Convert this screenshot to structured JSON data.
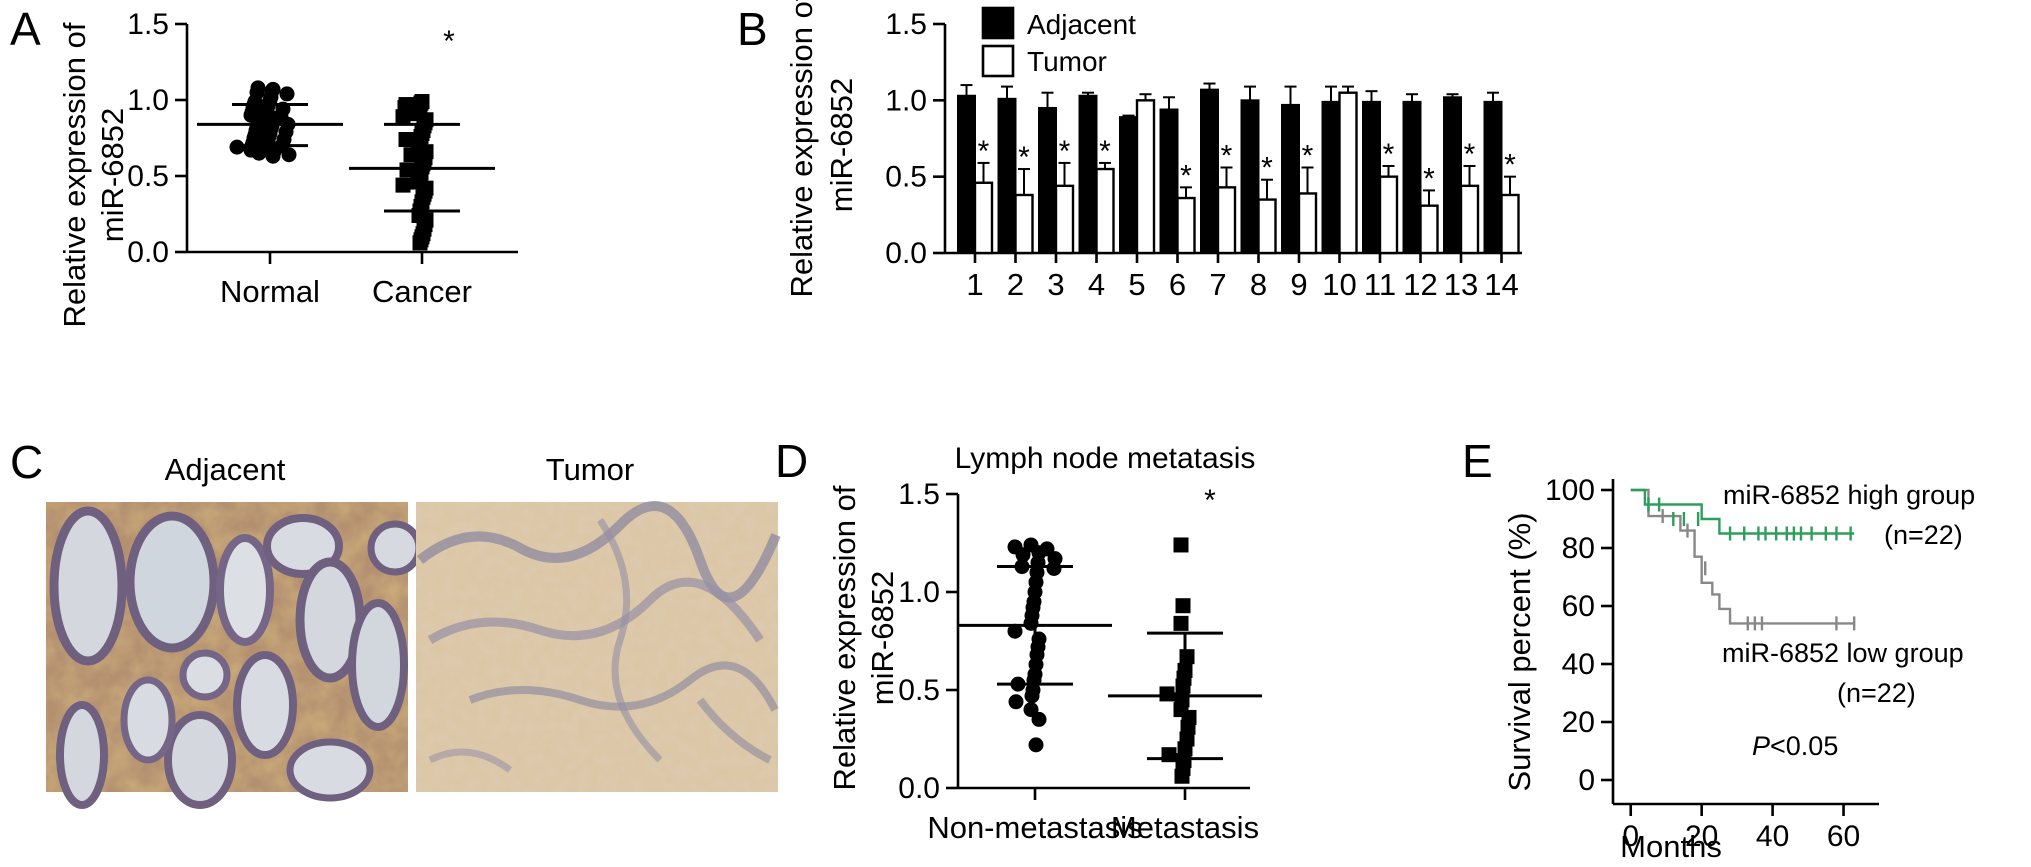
{
  "panels": {
    "A": "A",
    "B": "B",
    "C": "C",
    "D": "D",
    "E": "E"
  },
  "colors": {
    "high_group": "#2e9e5b",
    "low_group": "#888888",
    "adjacent_bar": "#000000",
    "tumor_bar": "#ffffff"
  },
  "micrographs": {
    "left_label": "Adjacent",
    "right_label": "Tumor"
  },
  "chart_data": [
    {
      "id": "A",
      "type": "scatter",
      "ylabel_line1": "Relative expression of",
      "ylabel_line2": "miR-6852",
      "ylim": [
        0,
        1.5
      ],
      "yticks": [
        "0.0",
        "0.5",
        "1.0",
        "1.5"
      ],
      "categories": [
        "Normal",
        "Cancer"
      ],
      "significance": "*",
      "groups": [
        {
          "name": "Normal",
          "marker": "circle",
          "mean": 0.84,
          "sd_low": 0.7,
          "sd_high": 0.97,
          "values": [
            1.07,
            1.06,
            1.08,
            1.05,
            1.04,
            1.02,
            1.0,
            0.99,
            0.98,
            0.97,
            0.96,
            0.95,
            0.94,
            0.93,
            0.92,
            0.91,
            0.9,
            0.89,
            0.88,
            0.87,
            0.86,
            0.85,
            0.84,
            0.83,
            0.82,
            0.81,
            0.8,
            0.79,
            0.78,
            0.77,
            0.76,
            0.75,
            0.74,
            0.73,
            0.72,
            0.71,
            0.7,
            0.7,
            0.69,
            0.68,
            0.67,
            0.66,
            0.65,
            0.64,
            0.63
          ]
        },
        {
          "name": "Cancer",
          "marker": "square",
          "mean": 0.55,
          "sd_low": 0.27,
          "sd_high": 0.84,
          "values": [
            0.99,
            0.98,
            0.97,
            0.96,
            0.95,
            0.93,
            0.91,
            0.89,
            0.87,
            0.85,
            0.83,
            0.8,
            0.78,
            0.76,
            0.74,
            0.72,
            0.7,
            0.68,
            0.66,
            0.64,
            0.62,
            0.6,
            0.58,
            0.56,
            0.54,
            0.52,
            0.5,
            0.48,
            0.46,
            0.44,
            0.42,
            0.4,
            0.38,
            0.36,
            0.33,
            0.3,
            0.27,
            0.24,
            0.21,
            0.18,
            0.15,
            0.12,
            0.1,
            0.08,
            0.06
          ]
        }
      ]
    },
    {
      "id": "B",
      "type": "bar",
      "ylabel_line1": "Relative expression of",
      "ylabel_line2": "miR-6852",
      "ylim": [
        0,
        1.5
      ],
      "yticks": [
        "0.0",
        "0.5",
        "1.0",
        "1.5"
      ],
      "categories": [
        "1",
        "2",
        "3",
        "4",
        "5",
        "6",
        "7",
        "8",
        "9",
        "10",
        "11",
        "12",
        "13",
        "14"
      ],
      "significance": "*",
      "significant": [
        true,
        true,
        true,
        true,
        false,
        true,
        true,
        true,
        true,
        false,
        true,
        true,
        true,
        true
      ],
      "series": [
        {
          "name": "Adjacent",
          "values": [
            1.03,
            1.01,
            0.95,
            1.03,
            0.89,
            0.94,
            1.07,
            1.0,
            0.97,
            0.99,
            0.99,
            0.99,
            1.02,
            0.99
          ],
          "errors": [
            0.07,
            0.08,
            0.1,
            0.02,
            0.01,
            0.08,
            0.04,
            0.09,
            0.12,
            0.1,
            0.07,
            0.05,
            0.02,
            0.06
          ]
        },
        {
          "name": "Tumor",
          "values": [
            0.46,
            0.38,
            0.44,
            0.55,
            1.0,
            0.36,
            0.43,
            0.35,
            0.39,
            1.05,
            0.5,
            0.31,
            0.44,
            0.38
          ],
          "errors": [
            0.13,
            0.17,
            0.15,
            0.04,
            0.04,
            0.07,
            0.13,
            0.13,
            0.17,
            0.04,
            0.07,
            0.1,
            0.13,
            0.12
          ]
        }
      ]
    },
    {
      "id": "D",
      "type": "scatter",
      "title": "Lymph node metatasis",
      "ylabel_line1": "Relative expression of",
      "ylabel_line2": "miR-6852",
      "ylim": [
        0,
        1.5
      ],
      "yticks": [
        "0.0",
        "0.5",
        "1.0",
        "1.5"
      ],
      "categories": [
        "Non-metastasis",
        "Metastasis"
      ],
      "significance": "*",
      "groups": [
        {
          "name": "Non-metastasis",
          "marker": "circle",
          "mean": 0.83,
          "sd_low": 0.53,
          "sd_high": 1.13,
          "values": [
            1.24,
            1.23,
            1.22,
            1.2,
            1.19,
            1.17,
            1.15,
            1.13,
            1.12,
            1.1,
            1.05,
            1.0,
            0.95,
            0.92,
            0.88,
            0.84,
            0.8,
            0.76,
            0.72,
            0.68,
            0.63,
            0.58,
            0.55,
            0.53,
            0.5,
            0.47,
            0.44,
            0.4,
            0.35,
            0.22
          ]
        },
        {
          "name": "Metastasis",
          "marker": "square",
          "mean": 0.47,
          "sd_low": 0.15,
          "sd_high": 0.79,
          "values": [
            1.24,
            0.93,
            0.84,
            0.67,
            0.6,
            0.56,
            0.52,
            0.48,
            0.45,
            0.4,
            0.36,
            0.31,
            0.25,
            0.2,
            0.17,
            0.14,
            0.1,
            0.06
          ]
        }
      ]
    },
    {
      "id": "E",
      "type": "line",
      "xlabel": "Months",
      "ylabel": "Survival percent (%)",
      "xlim": [
        -5,
        70
      ],
      "ylim": [
        0,
        100
      ],
      "xticks": [
        "0",
        "20",
        "40",
        "60"
      ],
      "yticks": [
        "0",
        "20",
        "40",
        "60",
        "80",
        "100"
      ],
      "p_italic": "P",
      "p_rest": "<0.05",
      "series": [
        {
          "name": "miR-6852 high group",
          "n_label": "(n=22)",
          "color": "#2e9e5b",
          "steps": [
            [
              0,
              100
            ],
            [
              4,
              100
            ],
            [
              4,
              95
            ],
            [
              20,
              95
            ],
            [
              20,
              90
            ],
            [
              25,
              90
            ],
            [
              25,
              85
            ],
            [
              63,
              85
            ]
          ],
          "censored": [
            [
              5,
              95
            ],
            [
              8,
              95
            ],
            [
              12,
              90
            ],
            [
              15,
              90
            ],
            [
              19,
              90
            ],
            [
              28,
              85
            ],
            [
              32,
              85
            ],
            [
              36,
              85
            ],
            [
              38,
              85
            ],
            [
              41,
              85
            ],
            [
              44,
              85
            ],
            [
              46,
              85
            ],
            [
              48,
              85
            ],
            [
              51,
              85
            ],
            [
              55,
              85
            ],
            [
              58,
              85
            ],
            [
              62,
              85
            ]
          ]
        },
        {
          "name": "miR-6852 low group",
          "n_label": "(n=22)",
          "color": "#888888",
          "steps": [
            [
              0,
              100
            ],
            [
              5,
              100
            ],
            [
              5,
              91
            ],
            [
              14,
              91
            ],
            [
              14,
              86
            ],
            [
              18,
              86
            ],
            [
              18,
              77
            ],
            [
              20,
              77
            ],
            [
              20,
              68
            ],
            [
              23,
              68
            ],
            [
              23,
              64
            ],
            [
              25,
              64
            ],
            [
              25,
              59
            ],
            [
              28,
              59
            ],
            [
              28,
              54
            ],
            [
              63,
              54
            ]
          ],
          "censored": [
            [
              9,
              91
            ],
            [
              16,
              86
            ],
            [
              21,
              73
            ],
            [
              33,
              54
            ],
            [
              35,
              54
            ],
            [
              37,
              54
            ],
            [
              58,
              54
            ],
            [
              63,
              54
            ]
          ]
        }
      ]
    }
  ]
}
